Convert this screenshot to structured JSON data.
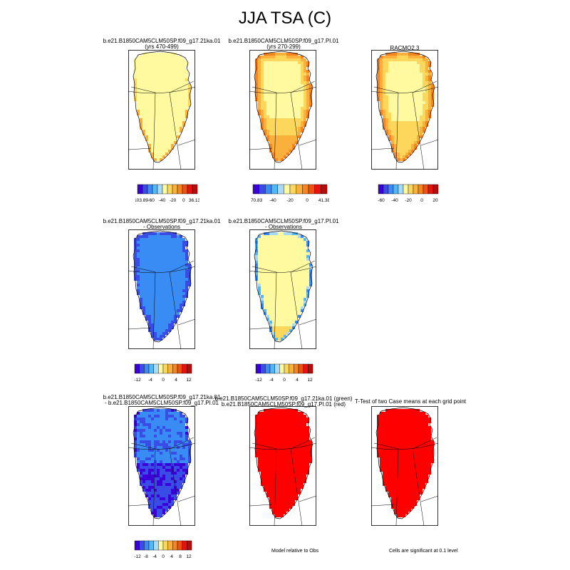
{
  "title": "JJA TSA (C)",
  "palette": [
    "#3c00d8",
    "#3a4ce6",
    "#3a8cf5",
    "#52b8f5",
    "#a9daf5",
    "#fffaa0",
    "#fdd75c",
    "#fbb03b",
    "#f7851f",
    "#f24f17",
    "#e71313",
    "#b50c0c"
  ],
  "colors": {
    "red_fill": "#ff0000",
    "background": "#ffffff",
    "grid": "#000000"
  },
  "chart_data": [
    {
      "type": "heatmap",
      "id": "p1",
      "title_lines": [
        "b.e21.B1850CAM5CLM50SP.f09_g17.21ka.01",
        "(yrs 470-499)"
      ],
      "pattern": "ka_abs",
      "colorbar": {
        "tick_labels": [
          "-103.89",
          "-60",
          "-40",
          "-20",
          "0",
          "36.13"
        ]
      }
    },
    {
      "type": "heatmap",
      "id": "p2",
      "title_lines": [
        "b.e21.B1850CAM5CLM50SP.f09_g17.PI.01",
        "(yrs 270-299)"
      ],
      "pattern": "pi_abs",
      "colorbar": {
        "tick_labels": [
          "-70.83",
          "-40",
          "-20",
          "0",
          "41.38"
        ]
      }
    },
    {
      "type": "heatmap",
      "id": "p3",
      "title_lines": [
        "RACMO2.3"
      ],
      "pattern": "obs_abs",
      "colorbar": {
        "tick_labels": [
          "-60",
          "-40",
          "-20",
          "0",
          "20"
        ]
      }
    },
    {
      "type": "heatmap",
      "id": "p4",
      "title_lines": [
        "b.e21.B1850CAM5CLM50SP.f09_g17.21ka.01",
        "- Observations"
      ],
      "pattern": "ka_obs",
      "colorbar": {
        "tick_labels": [
          "-12",
          "-4",
          "0",
          "4",
          "12"
        ]
      }
    },
    {
      "type": "heatmap",
      "id": "p5",
      "title_lines": [
        "b.e21.B1850CAM5CLM50SP.f09_g17.PI.01",
        "- Observations"
      ],
      "pattern": "pi_obs",
      "colorbar": {
        "tick_labels": [
          "-12",
          "-4",
          "0",
          "4",
          "12"
        ]
      }
    },
    {
      "type": "heatmap",
      "id": "p6",
      "title_lines": [
        "b.e21.B1850CAM5CLM50SP.f09_g17.21ka.01",
        "- b.e21.B1850CAM5CLM50SP.f09_g17.PI.01"
      ],
      "pattern": "ka_pi",
      "colorbar": {
        "tick_labels": [
          "-12",
          "-8",
          "-4",
          "0",
          "4",
          "8",
          "12"
        ]
      }
    },
    {
      "type": "heatmap",
      "id": "p7",
      "title_lines": [
        "b.e21.B1850CAM5CLM50SP.f09_g17.21ka.01 (green)",
        "b.e21.B1850CAM5CLM50SP.f09_g17.PI.01 (red)"
      ],
      "pattern": "red",
      "note": "Model relative to Obs"
    },
    {
      "type": "heatmap",
      "id": "p8",
      "title_lines": [
        "T-Test of two Case means at each grid point"
      ],
      "pattern": "red",
      "note": "Cells are significant at 0.1 level"
    }
  ]
}
